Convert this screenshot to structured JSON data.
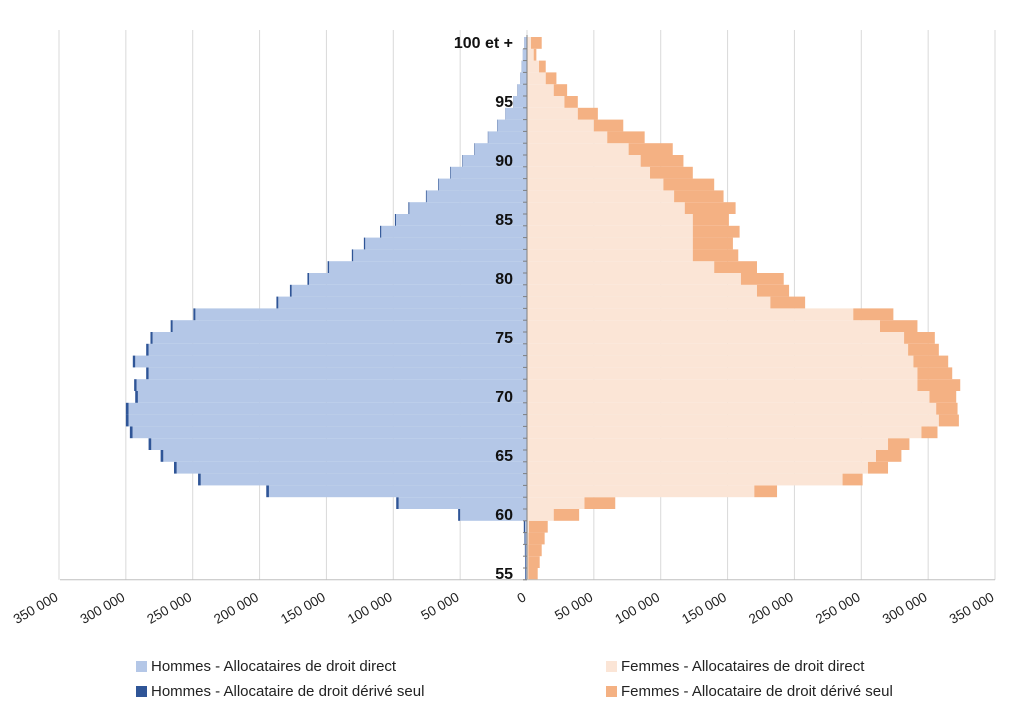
{
  "chart_data": {
    "type": "bar",
    "orientation": "horizontal-pyramid",
    "y_ticks": [
      "55",
      "60",
      "65",
      "70",
      "75",
      "80",
      "85",
      "90",
      "95",
      "100 et +"
    ],
    "x_tick_labels": [
      "350 000",
      "300 000",
      "250 000",
      "200 000",
      "150 000",
      "100 000",
      "50 000",
      "0",
      "50 000",
      "100 000",
      "150 000",
      "200 000",
      "250 000",
      "300 000",
      "350 000"
    ],
    "xlim": [
      -350000,
      350000
    ],
    "grid": true,
    "legend_position": "bottom",
    "ages": [
      55,
      56,
      57,
      58,
      59,
      60,
      61,
      62,
      63,
      64,
      65,
      66,
      67,
      68,
      69,
      70,
      71,
      72,
      73,
      74,
      75,
      76,
      77,
      78,
      79,
      80,
      81,
      82,
      83,
      84,
      85,
      86,
      87,
      88,
      89,
      90,
      91,
      92,
      93,
      94,
      95,
      96,
      97,
      98,
      99,
      "100 et +"
    ],
    "series": [
      {
        "name": "Hommes - Allocataires de droit direct",
        "color": "#b4c7e7",
        "values": [
          1000,
          1000,
          1000,
          1200,
          1500,
          50000,
          96000,
          193000,
          244000,
          262000,
          272000,
          281000,
          295000,
          298000,
          298000,
          291000,
          292000,
          283000,
          293000,
          283000,
          280000,
          265000,
          248000,
          186000,
          176000,
          163000,
          148000,
          130000,
          121000,
          109000,
          98000,
          88000,
          75000,
          66000,
          57000,
          48000,
          39000,
          29000,
          22000,
          16000,
          10000,
          7000,
          5000,
          4000,
          3000,
          2000
        ]
      },
      {
        "name": "Hommes - Allocataire de droit dérivé seul",
        "color": "#2f5597",
        "values": [
          500,
          500,
          600,
          700,
          900,
          1500,
          1800,
          2000,
          2000,
          2000,
          2000,
          2000,
          2000,
          2000,
          2000,
          2000,
          1800,
          1800,
          1800,
          1800,
          1600,
          1500,
          1500,
          1400,
          1300,
          1200,
          1100,
          1000,
          1000,
          900,
          800,
          700,
          600,
          500,
          500,
          400,
          400,
          300,
          300,
          200,
          200,
          200,
          100,
          100,
          100,
          100
        ]
      },
      {
        "name": "Femmes - Allocataires de droit direct",
        "color": "#fbe5d6",
        "values": [
          1000,
          1000,
          1000,
          1200,
          1500,
          20000,
          43000,
          170000,
          236000,
          255000,
          261000,
          270000,
          295000,
          308000,
          306000,
          301000,
          292000,
          292000,
          289000,
          285000,
          282000,
          264000,
          244000,
          182000,
          172000,
          160000,
          140000,
          124000,
          124000,
          124000,
          124000,
          118000,
          110000,
          102000,
          92000,
          85000,
          76000,
          60000,
          50000,
          38000,
          28000,
          20000,
          14000,
          9000,
          5000,
          3000
        ]
      },
      {
        "name": "Femmes - Allocataire de droit dérivé seul",
        "color": "#f4b183",
        "values": [
          7000,
          8500,
          10000,
          12000,
          14000,
          19000,
          23000,
          17000,
          15000,
          15000,
          19000,
          16000,
          12000,
          15000,
          16000,
          20000,
          32000,
          26000,
          26000,
          23000,
          23000,
          28000,
          30000,
          26000,
          24000,
          32000,
          32000,
          34000,
          30000,
          35000,
          27000,
          38000,
          37000,
          38000,
          32000,
          32000,
          33000,
          28000,
          22000,
          15000,
          10000,
          10000,
          8000,
          5000,
          2000,
          8000
        ]
      }
    ]
  }
}
